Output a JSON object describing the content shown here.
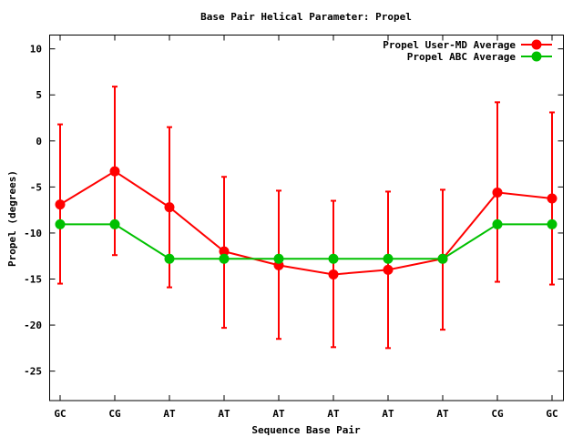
{
  "chart_data": {
    "type": "line",
    "title": "Base Pair Helical Parameter: Propel",
    "xlabel": "Sequence Base Pair",
    "ylabel": "Propel (degrees)",
    "categories": [
      "GC",
      "CG",
      "AT",
      "AT",
      "AT",
      "AT",
      "AT",
      "AT",
      "CG",
      "GC"
    ],
    "ylim": [
      -28.2,
      11.5
    ],
    "yticks": [
      10,
      5,
      0,
      -5,
      -10,
      -15,
      -20,
      -25
    ],
    "grid": false,
    "legend_position": "top-right",
    "series": [
      {
        "name": "Propel User-MD Average",
        "color": "#ff0000",
        "values": [
          -6.9,
          -3.3,
          -7.2,
          -12.0,
          -13.5,
          -14.5,
          -14.0,
          -12.8,
          -5.6,
          -6.25
        ],
        "error_high": [
          1.8,
          5.9,
          1.5,
          -3.9,
          -5.4,
          -6.5,
          -5.5,
          -5.3,
          4.2,
          3.1
        ],
        "error_low": [
          -15.5,
          -12.4,
          -15.9,
          -20.3,
          -21.5,
          -22.4,
          -22.5,
          -20.5,
          -15.3,
          -15.6
        ]
      },
      {
        "name": "Propel ABC Average",
        "color": "#00c000",
        "values": [
          -9.05,
          -9.05,
          -12.8,
          -12.8,
          -12.8,
          -12.8,
          -12.8,
          -12.8,
          -9.05,
          -9.05
        ]
      }
    ]
  }
}
